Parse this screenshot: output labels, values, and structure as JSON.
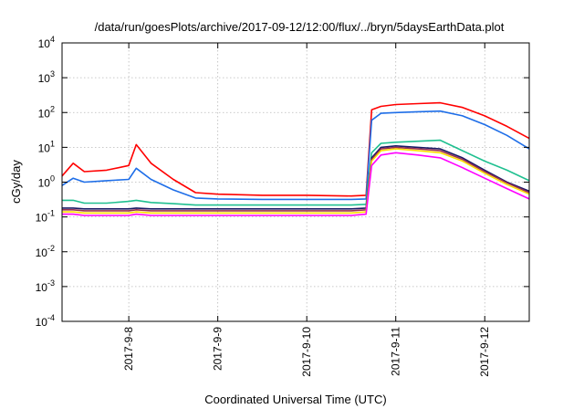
{
  "chart_data": {
    "type": "line",
    "title": "/data/run/goesPlots/archive/2017-09-12/12:00/flux/../bryn/5daysEarthData.plot",
    "xlabel": "Coordinated Universal Time (UTC)",
    "ylabel": "cGy/day",
    "x_scale": "time",
    "y_scale": "log",
    "xlim": [
      "2017-09-07T06:00",
      "2017-09-12T12:00"
    ],
    "ylim": [
      0.0001,
      10000
    ],
    "grid": true,
    "x_ticks": [
      {
        "value": "2017-09-08T00:00",
        "label": "2017-9-8"
      },
      {
        "value": "2017-09-09T00:00",
        "label": "2017-9-9"
      },
      {
        "value": "2017-09-10T00:00",
        "label": "2017-9-10"
      },
      {
        "value": "2017-09-11T00:00",
        "label": "2017-9-11"
      },
      {
        "value": "2017-09-12T00:00",
        "label": "2017-9-12"
      }
    ],
    "y_ticks": [
      {
        "value": 0.0001,
        "base": "10",
        "exp": "-4"
      },
      {
        "value": 0.001,
        "base": "10",
        "exp": "-3"
      },
      {
        "value": 0.01,
        "base": "10",
        "exp": "-2"
      },
      {
        "value": 0.1,
        "base": "10",
        "exp": "-1"
      },
      {
        "value": 1,
        "base": "10",
        "exp": "0"
      },
      {
        "value": 10,
        "base": "10",
        "exp": "1"
      },
      {
        "value": 100,
        "base": "10",
        "exp": "2"
      },
      {
        "value": 1000,
        "base": "10",
        "exp": "3"
      },
      {
        "value": 10000,
        "base": "10",
        "exp": "4"
      }
    ],
    "x": [
      "2017-09-07T06:00",
      "2017-09-07T09:00",
      "2017-09-07T12:00",
      "2017-09-07T18:00",
      "2017-09-08T00:00",
      "2017-09-08T02:00",
      "2017-09-08T06:00",
      "2017-09-08T12:00",
      "2017-09-08T18:00",
      "2017-09-09T00:00",
      "2017-09-09T12:00",
      "2017-09-10T00:00",
      "2017-09-10T12:00",
      "2017-09-10T16:00",
      "2017-09-10T17:30",
      "2017-09-10T20:00",
      "2017-09-11T00:00",
      "2017-09-11T06:00",
      "2017-09-11T12:00",
      "2017-09-11T18:00",
      "2017-09-12T00:00",
      "2017-09-12T06:00",
      "2017-09-12T12:00"
    ],
    "series": [
      {
        "color": "#ff0000",
        "values": [
          1.5,
          3.5,
          2.0,
          2.2,
          3.0,
          12.0,
          3.5,
          1.2,
          0.5,
          0.45,
          0.42,
          0.42,
          0.4,
          0.42,
          120,
          150,
          170,
          180,
          190,
          140,
          80,
          40,
          18
        ]
      },
      {
        "color": "#1e6ee8",
        "values": [
          0.8,
          1.3,
          1.0,
          1.1,
          1.2,
          2.5,
          1.2,
          0.6,
          0.35,
          0.33,
          0.32,
          0.32,
          0.32,
          0.33,
          60,
          95,
          100,
          105,
          110,
          80,
          45,
          22,
          9
        ]
      },
      {
        "color": "#20c090",
        "values": [
          0.3,
          0.3,
          0.25,
          0.25,
          0.28,
          0.3,
          0.26,
          0.24,
          0.22,
          0.22,
          0.22,
          0.22,
          0.22,
          0.23,
          7,
          13,
          14,
          15,
          16,
          8,
          4,
          2.2,
          1.1
        ]
      },
      {
        "color": "#1a1a66",
        "values": [
          0.18,
          0.18,
          0.17,
          0.17,
          0.17,
          0.18,
          0.17,
          0.17,
          0.17,
          0.17,
          0.17,
          0.17,
          0.17,
          0.18,
          5,
          10,
          11,
          10,
          9,
          5,
          2.2,
          1.0,
          0.55
        ]
      },
      {
        "color": "#9a3050",
        "values": [
          0.16,
          0.16,
          0.15,
          0.15,
          0.15,
          0.16,
          0.15,
          0.15,
          0.15,
          0.15,
          0.15,
          0.15,
          0.15,
          0.16,
          4.5,
          9,
          10,
          9,
          8,
          4.5,
          2.0,
          0.95,
          0.5
        ]
      },
      {
        "color": "#ffe000",
        "values": [
          0.14,
          0.14,
          0.13,
          0.13,
          0.13,
          0.14,
          0.13,
          0.13,
          0.13,
          0.13,
          0.13,
          0.13,
          0.13,
          0.14,
          4,
          8,
          9,
          8,
          7,
          4,
          1.8,
          0.85,
          0.45
        ]
      },
      {
        "color": "#ff00ff",
        "values": [
          0.12,
          0.12,
          0.11,
          0.11,
          0.11,
          0.12,
          0.11,
          0.11,
          0.11,
          0.11,
          0.11,
          0.11,
          0.11,
          0.12,
          3,
          6,
          7,
          6,
          5,
          2.6,
          1.3,
          0.65,
          0.33
        ]
      }
    ]
  }
}
